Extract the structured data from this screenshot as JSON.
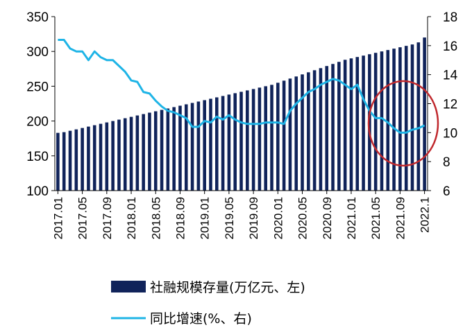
{
  "chart_data": {
    "type": "bar+line",
    "categories": [
      "2017.01",
      "2017.02",
      "2017.03",
      "2017.04",
      "2017.05",
      "2017.06",
      "2017.07",
      "2017.08",
      "2017.09",
      "2017.10",
      "2017.11",
      "2017.12",
      "2018.01",
      "2018.02",
      "2018.03",
      "2018.04",
      "2018.05",
      "2018.06",
      "2018.07",
      "2018.08",
      "2018.09",
      "2018.10",
      "2018.11",
      "2018.12",
      "2019.01",
      "2019.02",
      "2019.03",
      "2019.04",
      "2019.05",
      "2019.06",
      "2019.07",
      "2019.08",
      "2019.09",
      "2019.10",
      "2019.11",
      "2019.12",
      "2020.01",
      "2020.02",
      "2020.03",
      "2020.04",
      "2020.05",
      "2020.06",
      "2020.07",
      "2020.08",
      "2020.09",
      "2020.10",
      "2020.11",
      "2020.12",
      "2021.01",
      "2021.02",
      "2021.03",
      "2021.04",
      "2021.05",
      "2021.06",
      "2021.07",
      "2021.08",
      "2021.09",
      "2021.10",
      "2021.11",
      "2021.12",
      "2022.1"
    ],
    "x_tick_labels": [
      "2017.01",
      "2017.05",
      "2017.09",
      "2018.01",
      "2018.05",
      "2018.09",
      "2019.01",
      "2019.05",
      "2019.09",
      "2020.01",
      "2020.05",
      "2020.09",
      "2021.01",
      "2021.05",
      "2021.09",
      "2022.1"
    ],
    "series": [
      {
        "name": "社融规模存量(万亿元、左)",
        "type": "bar",
        "axis": "left",
        "color": "#10235a",
        "values": [
          183,
          184,
          186,
          188,
          190,
          192,
          194,
          196,
          198,
          200,
          202,
          204,
          206,
          208,
          210,
          212,
          214,
          216,
          218,
          220,
          222,
          224,
          226,
          228,
          230,
          232,
          234,
          236,
          238,
          240,
          242,
          244,
          246,
          248,
          250,
          252,
          255,
          258,
          261,
          264,
          267,
          270,
          273,
          276,
          279,
          282,
          285,
          288,
          290,
          292,
          294,
          296,
          298,
          300,
          302,
          304,
          306,
          308,
          310,
          313,
          320
        ]
      },
      {
        "name": "同比增速(%、右)",
        "type": "line",
        "axis": "right",
        "color": "#1eb4e6",
        "values": [
          16.4,
          16.4,
          15.8,
          15.6,
          15.6,
          15.0,
          15.6,
          15.2,
          15.0,
          15.0,
          14.6,
          14.2,
          13.6,
          13.5,
          12.8,
          12.7,
          12.2,
          11.8,
          11.5,
          11.4,
          11.2,
          11.0,
          10.4,
          10.4,
          10.8,
          10.7,
          11.1,
          10.9,
          11.2,
          10.9,
          10.7,
          10.6,
          10.6,
          10.6,
          10.7,
          10.7,
          10.7,
          10.6,
          11.5,
          12.0,
          12.4,
          12.8,
          13.0,
          13.3,
          13.5,
          13.7,
          13.6,
          13.3,
          13.0,
          13.3,
          12.3,
          11.5,
          11.0,
          11.0,
          10.7,
          10.3,
          10.0,
          10.0,
          10.2,
          10.3,
          10.5
        ]
      }
    ],
    "y_left": {
      "min": 100,
      "max": 350,
      "ticks": [
        "100",
        "150",
        "200",
        "250",
        "300",
        "350"
      ]
    },
    "y_right": {
      "min": 6,
      "max": 18,
      "ticks": [
        "6",
        "8",
        "10",
        "12",
        "14",
        "16",
        "18"
      ]
    },
    "annotation": {
      "shape": "circle",
      "color": "#c0282d",
      "around": "2021.05–2022.1"
    },
    "legend_placement": "bottom",
    "grid": false
  }
}
